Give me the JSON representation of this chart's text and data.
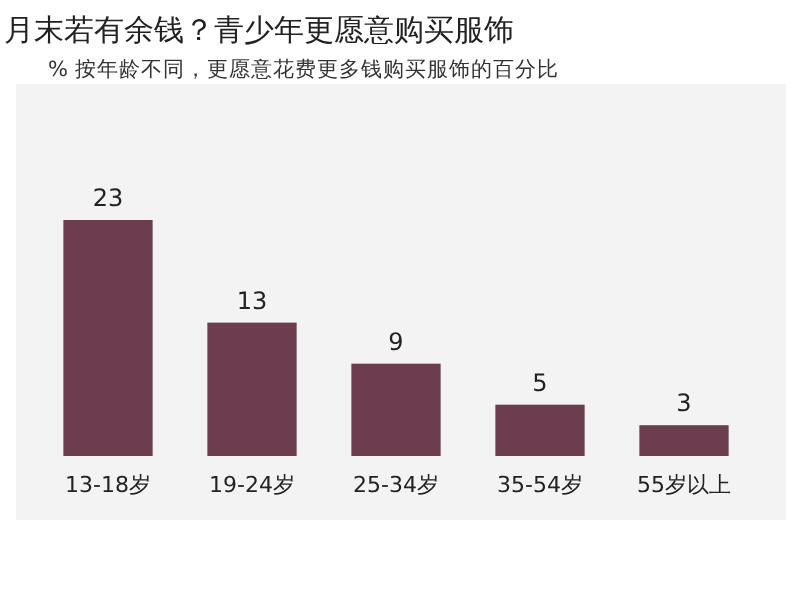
{
  "chart_data": {
    "type": "bar",
    "title": "月末若有余钱？青少年更愿意购买服饰",
    "subtitle": "% 按年龄不同，更愿意花费更多钱购买服饰的百分比",
    "categories": [
      "13-18岁",
      "19-24岁",
      "25-34岁",
      "35-54岁",
      "55岁以上"
    ],
    "values": [
      23,
      13,
      9,
      5,
      3
    ],
    "color": "#6b3d4e",
    "data_labels": true
  }
}
